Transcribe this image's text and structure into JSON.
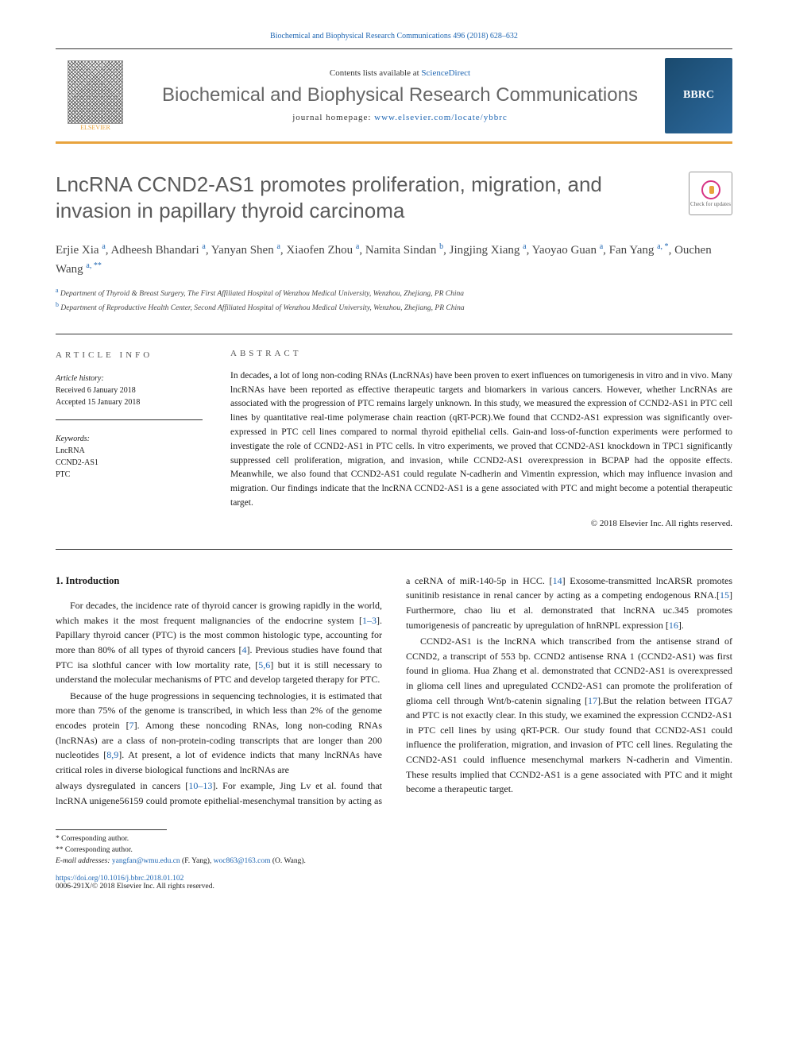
{
  "header_link_text": "Biochemical and Biophysical Research Communications 496 (2018) 628–632",
  "contents_text": "Contents lists available at ",
  "contents_link": "ScienceDirect",
  "journal_title": "Biochemical and Biophysical Research Communications",
  "homepage_label": "journal homepage: ",
  "homepage_link": "www.elsevier.com/locate/ybbrc",
  "elsevier_label": "ELSEVIER",
  "bbrc_label": "BBRC",
  "updates_label": "Check for updates",
  "article_title": "LncRNA CCND2-AS1 promotes proliferation, migration, and invasion in papillary thyroid carcinoma",
  "authors_html": "Erjie Xia <sup>a</sup>, Adheesh Bhandari <sup>a</sup>, Yanyan Shen <sup>a</sup>, Xiaofen Zhou <sup>a</sup>, Namita Sindan <sup>b</sup>, Jingjing Xiang <sup>a</sup>, Yaoyao Guan <sup>a</sup>, Fan Yang <sup>a, *</sup>, Ouchen Wang <sup>a, **</sup>",
  "affiliations": {
    "a": "Department of Thyroid & Breast Surgery, The First Affiliated Hospital of Wenzhou Medical University, Wenzhou, Zhejiang, PR China",
    "b": "Department of Reproductive Health Center, Second Affiliated Hospital of Wenzhou Medical University, Wenzhou, Zhejiang, PR China"
  },
  "article_info_label": "ARTICLE INFO",
  "abstract_label": "ABSTRACT",
  "article_history_label": "Article history:",
  "received": "Received 6 January 2018",
  "accepted": "Accepted 15 January 2018",
  "keywords_label": "Keywords:",
  "keywords": [
    "LncRNA",
    "CCND2-AS1",
    "PTC"
  ],
  "abstract_text": "In decades, a lot of long non-coding RNAs (LncRNAs) have been proven to exert influences on tumorigenesis in vitro and in vivo. Many lncRNAs have been reported as effective therapeutic targets and biomarkers in various cancers. However, whether LncRNAs are associated with the progression of PTC remains largely unknown. In this study, we measured the expression of CCND2-AS1 in PTC cell lines by quantitative real-time polymerase chain reaction (qRT-PCR).We found that CCND2-AS1 expression was significantly over-expressed in PTC cell lines compared to normal thyroid epithelial cells. Gain-and loss-of-function experiments were performed to investigate the role of CCND2-AS1 in PTC cells. In vitro experiments, we proved that CCND2-AS1 knockdown in TPC1 significantly suppressed cell proliferation, migration, and invasion, while CCND2-AS1 overexpression in BCPAP had the opposite effects. Meanwhile, we also found that CCND2-AS1 could regulate N-cadherin and Vimentin expression, which may influence invasion and migration. Our findings indicate that the lncRNA CCND2-AS1 is a gene associated with PTC and might become a potential therapeutic target.",
  "copyright": "© 2018 Elsevier Inc. All rights reserved.",
  "intro_heading": "1. Introduction",
  "intro_p1": "For decades, the incidence rate of thyroid cancer is growing rapidly in the world, which makes it the most frequent malignancies of the endocrine system [1–3]. Papillary thyroid cancer (PTC) is the most common histologic type, accounting for more than 80% of all types of thyroid cancers [4]. Previous studies have found that PTC isa slothful cancer with low mortality rate, [5,6] but it is still necessary to understand the molecular mechanisms of PTC and develop targeted therapy for PTC.",
  "intro_p2": "Because of the huge progressions in sequencing technologies, it is estimated that more than 75% of the genome is transcribed, in which less than 2% of the genome encodes protein [7]. Among these noncoding RNAs, long non-coding RNAs (lncRNAs) are a class of non-protein-coding transcripts that are longer than 200 nucleotides [8,9]. At present, a lot of evidence indicts that many lncRNAs have critical roles in diverse biological functions and lncRNAs are",
  "intro_p3": "always dysregulated in cancers [10–13]. For example, Jing Lv et al. found that lncRNA unigene56159 could promote epithelial-mesenchymal transition by acting as a ceRNA of miR-140-5p in HCC. [14] Exosome-transmitted lncARSR promotes sunitinib resistance in renal cancer by acting as a competing endogenous RNA.[15] Furthermore, chao liu et al. demonstrated that lncRNA uc.345 promotes tumorigenesis of pancreatic by upregulation of hnRNPL expression [16].",
  "intro_p4": "CCND2-AS1 is the lncRNA which transcribed from the antisense strand of CCND2, a transcript of 553 bp. CCND2 antisense RNA 1 (CCND2-AS1) was first found in glioma. Hua Zhang et al. demonstrated that CCND2-AS1 is overexpressed in glioma cell lines and upregulated CCND2-AS1 can promote the proliferation of glioma cell through Wnt/b-catenin signaling [17].But the relation between ITGA7 and PTC is not exactly clear. In this study, we examined the expression CCND2-AS1 in PTC cell lines by using qRT-PCR. Our study found that CCND2-AS1 could influence the proliferation, migration, and invasion of PTC cell lines. Regulating the CCND2-AS1 could influence mesenchymal markers N-cadherin and Vimentin. These results implied that CCND2-AS1 is a gene associated with PTC and it might become a therapeutic target.",
  "corr1": "* Corresponding author.",
  "corr2": "** Corresponding author.",
  "email_label": "E-mail addresses: ",
  "email1": "yangfan@wmu.edu.cn",
  "email1_name": " (F. Yang), ",
  "email2": "woc863@163.com",
  "email2_name": " (O. Wang).",
  "doi": "https://doi.org/10.1016/j.bbrc.2018.01.102",
  "issn_cr": "0006-291X/© 2018 Elsevier Inc. All rights reserved.",
  "colors": {
    "link": "#2067b3",
    "accent": "#e8a33d",
    "bbrc_bg": "#1a4a6e",
    "title_gray": "#5a5a5a"
  }
}
